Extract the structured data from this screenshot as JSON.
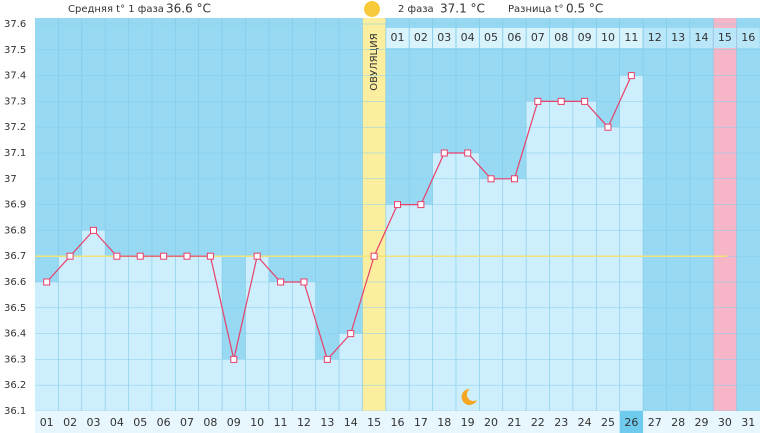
{
  "header": {
    "phase1_label": "Средняя t° 1 фаза",
    "phase1_value": "36.6 °C",
    "phase2_label": "2 фаза",
    "phase2_value": "37.1 °C",
    "diff_label": "Разница t°",
    "diff_value": "0.5 °C"
  },
  "chart_data": {
    "type": "line",
    "categories": [
      "01",
      "02",
      "03",
      "04",
      "05",
      "06",
      "07",
      "08",
      "09",
      "10",
      "11",
      "12",
      "13",
      "14",
      "15",
      "16",
      "17",
      "18",
      "19",
      "20",
      "21",
      "22",
      "23",
      "24",
      "25",
      "26",
      "27",
      "28",
      "29",
      "30",
      "31"
    ],
    "phase2_days": [
      "01",
      "02",
      "03",
      "04",
      "05",
      "06",
      "07",
      "08",
      "09",
      "10",
      "11",
      "12",
      "13",
      "14",
      "15",
      "16"
    ],
    "values": [
      36.6,
      36.7,
      36.8,
      36.7,
      36.7,
      36.7,
      36.7,
      36.7,
      36.3,
      36.7,
      36.6,
      36.6,
      36.3,
      36.4,
      36.7,
      36.9,
      36.9,
      37.1,
      37.1,
      37.0,
      37.0,
      37.3,
      37.3,
      37.3,
      37.2,
      37.4,
      null,
      null,
      null,
      null,
      null
    ],
    "color": "#e8416a",
    "ylim": [
      36.1,
      37.6
    ],
    "yticks": [
      36.1,
      36.2,
      36.3,
      36.4,
      36.5,
      36.6,
      36.7,
      36.8,
      36.9,
      37,
      37.1,
      37.2,
      37.3,
      37.4,
      37.5,
      37.6
    ],
    "cover_line": 36.7,
    "ovulation_label": "ОВУЛЯЦИЯ",
    "ovulation_index": 14,
    "today_index": 25,
    "highlight_index": 29,
    "grid": true
  }
}
